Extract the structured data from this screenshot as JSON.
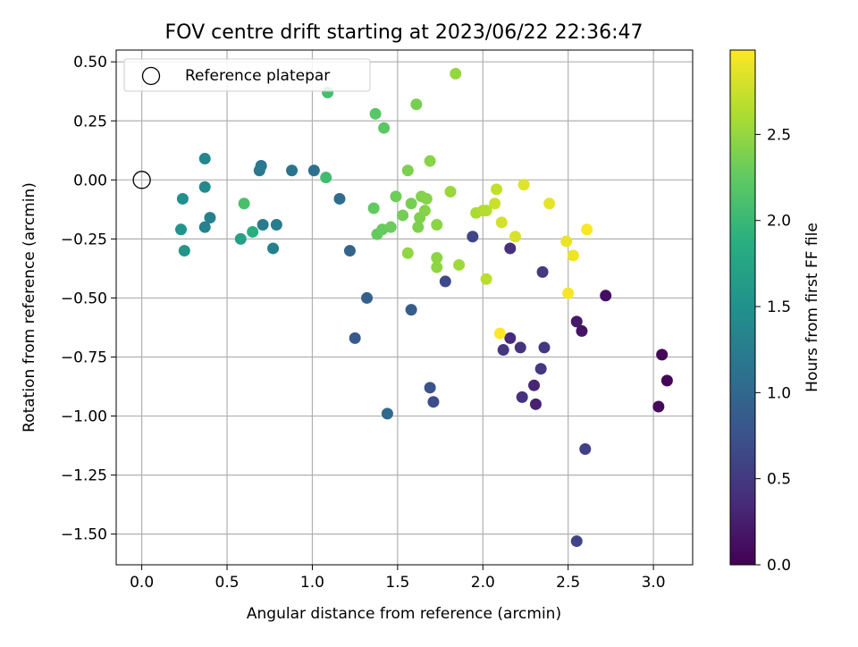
{
  "chart_data": {
    "type": "scatter",
    "title": "FOV centre drift starting at 2023/06/22 22:36:47",
    "xlabel": "Angular distance from reference (arcmin)",
    "ylabel": "Rotation from reference (arcmin)",
    "xlim": [
      -0.15,
      3.23
    ],
    "ylim": [
      -1.63,
      0.55
    ],
    "xticks": [
      0.0,
      0.5,
      1.0,
      1.5,
      2.0,
      2.5,
      3.0
    ],
    "xtick_labels": [
      "0.0",
      "0.5",
      "1.0",
      "1.5",
      "2.0",
      "2.5",
      "3.0"
    ],
    "yticks": [
      0.5,
      0.25,
      0.0,
      -0.25,
      -0.5,
      -0.75,
      -1.0,
      -1.25,
      -1.5
    ],
    "ytick_labels": [
      "0.50",
      "0.25",
      "0.00",
      "−0.25",
      "−0.50",
      "−0.75",
      "−1.00",
      "−1.25",
      "−1.50"
    ],
    "grid": true,
    "legend": {
      "placement": "upper-left",
      "entries": [
        "Reference platepar"
      ]
    },
    "reference_point": {
      "x": 0.0,
      "y": 0.0
    },
    "colorbar": {
      "label": "Hours from first FF file",
      "colormap": "viridis",
      "range": [
        0.0,
        2.99
      ],
      "ticks": [
        0.0,
        0.5,
        1.0,
        1.5,
        2.0,
        2.5
      ],
      "tick_labels": [
        "0.0",
        "0.5",
        "1.0",
        "1.5",
        "2.0",
        "2.5"
      ]
    },
    "series": [
      {
        "colored_by": "Hours from first FF file",
        "points": [
          {
            "x": 3.08,
            "y": -0.85,
            "c": 0.03
          },
          {
            "x": 3.05,
            "y": -0.74,
            "c": 0.05
          },
          {
            "x": 3.03,
            "y": -0.96,
            "c": 0.08
          },
          {
            "x": 2.72,
            "y": -0.49,
            "c": 0.12
          },
          {
            "x": 2.58,
            "y": -0.64,
            "c": 0.16
          },
          {
            "x": 2.55,
            "y": -0.6,
            "c": 0.2
          },
          {
            "x": 2.31,
            "y": -0.95,
            "c": 0.28
          },
          {
            "x": 2.3,
            "y": -0.87,
            "c": 0.32
          },
          {
            "x": 2.16,
            "y": -0.67,
            "c": 0.36
          },
          {
            "x": 2.16,
            "y": -0.29,
            "c": 0.4
          },
          {
            "x": 2.23,
            "y": -0.92,
            "c": 0.42
          },
          {
            "x": 2.22,
            "y": -0.71,
            "c": 0.44
          },
          {
            "x": 2.12,
            "y": -0.72,
            "c": 0.46
          },
          {
            "x": 2.34,
            "y": -0.8,
            "c": 0.48
          },
          {
            "x": 2.36,
            "y": -0.71,
            "c": 0.5
          },
          {
            "x": 2.35,
            "y": -0.39,
            "c": 0.52
          },
          {
            "x": 2.6,
            "y": -1.14,
            "c": 0.58
          },
          {
            "x": 2.55,
            "y": -1.53,
            "c": 0.6
          },
          {
            "x": 1.94,
            "y": -0.24,
            "c": 0.62
          },
          {
            "x": 1.78,
            "y": -0.43,
            "c": 0.66
          },
          {
            "x": 1.71,
            "y": -0.94,
            "c": 0.7
          },
          {
            "x": 1.69,
            "y": -0.88,
            "c": 0.76
          },
          {
            "x": 1.25,
            "y": -0.67,
            "c": 0.84
          },
          {
            "x": 1.58,
            "y": -0.55,
            "c": 0.88
          },
          {
            "x": 1.32,
            "y": -0.5,
            "c": 0.92
          },
          {
            "x": 1.22,
            "y": -0.3,
            "c": 0.96
          },
          {
            "x": 1.44,
            "y": -0.99,
            "c": 1.02
          },
          {
            "x": 1.16,
            "y": -0.08,
            "c": 1.06
          },
          {
            "x": 1.01,
            "y": 0.04,
            "c": 1.1
          },
          {
            "x": 0.88,
            "y": 0.04,
            "c": 1.14
          },
          {
            "x": 0.7,
            "y": 0.06,
            "c": 1.18
          },
          {
            "x": 0.69,
            "y": 0.04,
            "c": 1.2
          },
          {
            "x": 0.71,
            "y": -0.19,
            "c": 1.22
          },
          {
            "x": 0.79,
            "y": -0.19,
            "c": 1.26
          },
          {
            "x": 0.77,
            "y": -0.29,
            "c": 1.28
          },
          {
            "x": 0.4,
            "y": -0.16,
            "c": 1.3
          },
          {
            "x": 0.37,
            "y": -0.2,
            "c": 1.32
          },
          {
            "x": 0.37,
            "y": 0.09,
            "c": 1.36
          },
          {
            "x": 0.37,
            "y": -0.03,
            "c": 1.4
          },
          {
            "x": 0.24,
            "y": -0.08,
            "c": 1.48
          },
          {
            "x": 0.23,
            "y": -0.21,
            "c": 1.52
          },
          {
            "x": 0.25,
            "y": -0.3,
            "c": 1.55
          },
          {
            "x": 0.58,
            "y": -0.25,
            "c": 1.7
          },
          {
            "x": 0.65,
            "y": -0.22,
            "c": 1.85
          },
          {
            "x": 1.08,
            "y": 0.01,
            "c": 2.05
          },
          {
            "x": 1.09,
            "y": 0.37,
            "c": 2.08
          },
          {
            "x": 0.6,
            "y": -0.1,
            "c": 2.1
          },
          {
            "x": 1.37,
            "y": 0.28,
            "c": 2.2
          },
          {
            "x": 1.42,
            "y": 0.22,
            "c": 2.22
          },
          {
            "x": 1.36,
            "y": -0.12,
            "c": 2.25
          },
          {
            "x": 1.38,
            "y": -0.23,
            "c": 2.27
          },
          {
            "x": 1.41,
            "y": -0.21,
            "c": 2.28
          },
          {
            "x": 1.46,
            "y": -0.2,
            "c": 2.3
          },
          {
            "x": 1.49,
            "y": -0.07,
            "c": 2.32
          },
          {
            "x": 1.53,
            "y": -0.15,
            "c": 2.34
          },
          {
            "x": 1.58,
            "y": -0.1,
            "c": 2.36
          },
          {
            "x": 1.61,
            "y": 0.32,
            "c": 2.36
          },
          {
            "x": 1.56,
            "y": 0.04,
            "c": 2.38
          },
          {
            "x": 1.62,
            "y": -0.2,
            "c": 2.39
          },
          {
            "x": 1.63,
            "y": -0.16,
            "c": 2.4
          },
          {
            "x": 1.64,
            "y": -0.07,
            "c": 2.41
          },
          {
            "x": 1.66,
            "y": -0.13,
            "c": 2.42
          },
          {
            "x": 1.67,
            "y": -0.08,
            "c": 2.43
          },
          {
            "x": 1.69,
            "y": 0.08,
            "c": 2.44
          },
          {
            "x": 1.73,
            "y": -0.19,
            "c": 2.45
          },
          {
            "x": 1.73,
            "y": -0.33,
            "c": 2.46
          },
          {
            "x": 1.73,
            "y": -0.37,
            "c": 2.47
          },
          {
            "x": 1.56,
            "y": -0.31,
            "c": 2.48
          },
          {
            "x": 1.84,
            "y": 0.45,
            "c": 2.5
          },
          {
            "x": 1.81,
            "y": -0.05,
            "c": 2.52
          },
          {
            "x": 1.86,
            "y": -0.36,
            "c": 2.55
          },
          {
            "x": 1.96,
            "y": -0.14,
            "c": 2.6
          },
          {
            "x": 2.0,
            "y": -0.13,
            "c": 2.63
          },
          {
            "x": 2.02,
            "y": -0.13,
            "c": 2.65
          },
          {
            "x": 2.02,
            "y": -0.42,
            "c": 2.68
          },
          {
            "x": 2.08,
            "y": -0.04,
            "c": 2.72
          },
          {
            "x": 2.07,
            "y": -0.1,
            "c": 2.75
          },
          {
            "x": 2.11,
            "y": -0.18,
            "c": 2.8
          },
          {
            "x": 2.19,
            "y": -0.24,
            "c": 2.82
          },
          {
            "x": 2.24,
            "y": -0.02,
            "c": 2.85
          },
          {
            "x": 2.39,
            "y": -0.1,
            "c": 2.88
          },
          {
            "x": 2.49,
            "y": -0.26,
            "c": 2.9
          },
          {
            "x": 2.53,
            "y": -0.32,
            "c": 2.92
          },
          {
            "x": 2.5,
            "y": -0.48,
            "c": 2.95
          },
          {
            "x": 2.61,
            "y": -0.21,
            "c": 2.97
          },
          {
            "x": 2.1,
            "y": -0.65,
            "c": 2.99
          }
        ]
      }
    ]
  }
}
